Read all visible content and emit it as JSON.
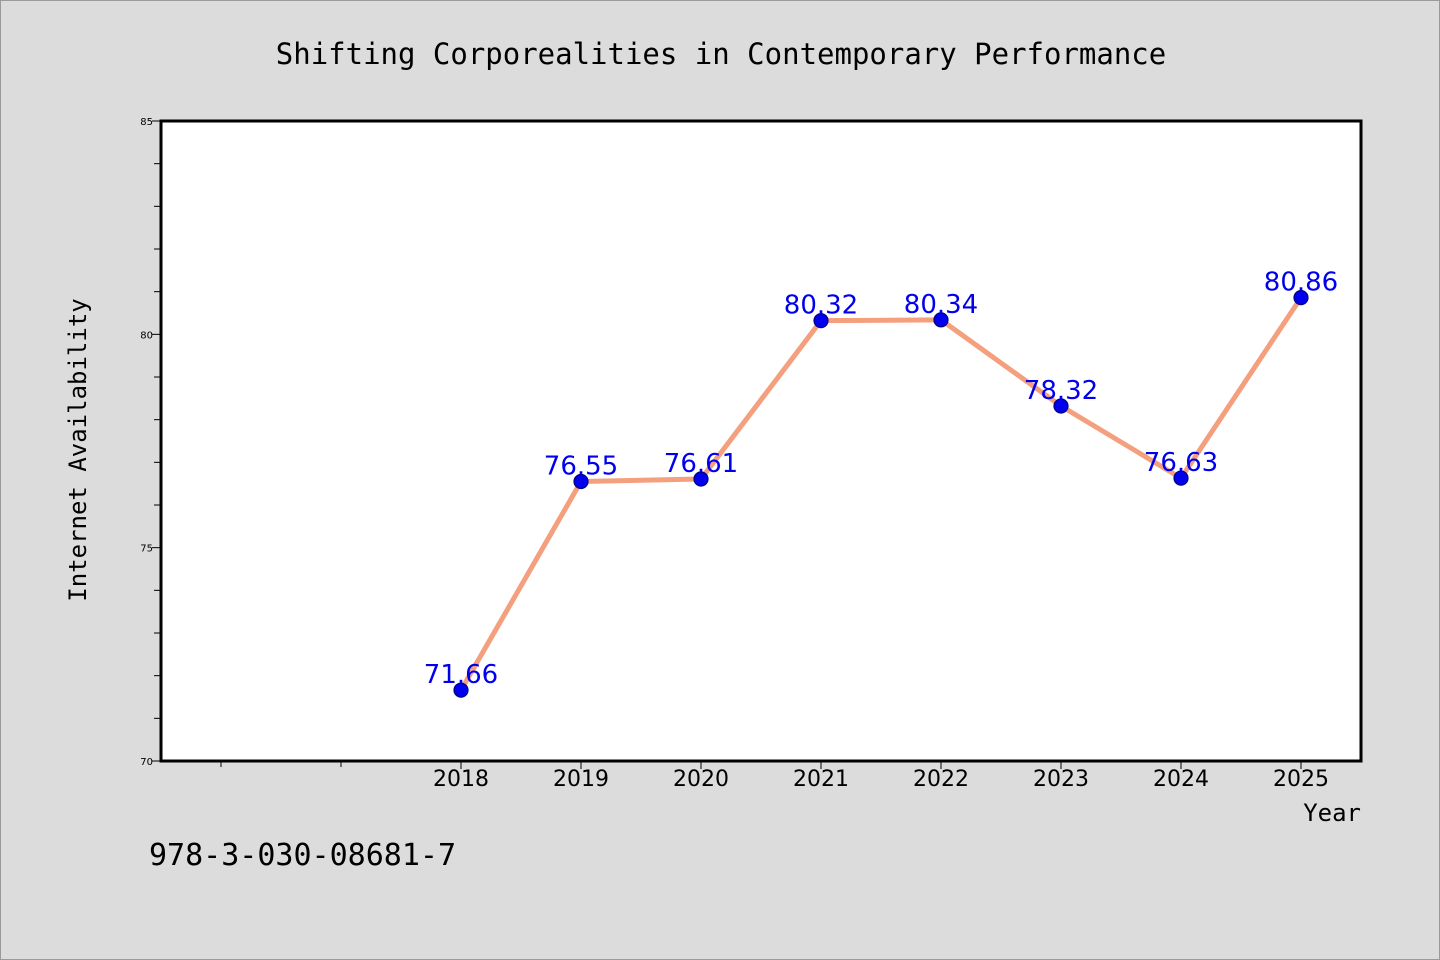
{
  "chart_data": {
    "type": "line",
    "title": "Shifting Corporealities in Contemporary Performance",
    "xlabel": "Year",
    "ylabel": "Internet Availability",
    "x": [
      2018,
      2019,
      2020,
      2021,
      2022,
      2023,
      2024,
      2025
    ],
    "x_tick_labels": [
      "2018",
      "2019",
      "2020",
      "2021",
      "2022",
      "2023",
      "2024",
      "2025"
    ],
    "xlim": [
      2015.5,
      2025.5
    ],
    "series": [
      {
        "values": [
          71.66,
          76.55,
          76.61,
          80.32,
          80.34,
          78.32,
          76.63,
          80.86
        ],
        "data_labels": [
          "71.66",
          "76.55",
          "76.61",
          "80.32",
          "80.34",
          "78.32",
          "76.63",
          "80.86"
        ]
      }
    ],
    "ylim": [
      70,
      85
    ],
    "y_major_ticks": [
      70,
      75,
      80,
      85
    ],
    "y_tick_labels": [
      "70",
      "75",
      "80",
      "85"
    ],
    "y_minor_step": 1,
    "grid": false,
    "colors": {
      "line": "#f4a07e",
      "marker": "#0000ee",
      "marker_edge": "#000080",
      "data_label": "#0000ee",
      "plot_background": "#ffffff",
      "figure_background": "#dcdcdc",
      "axes_frame": "#000000"
    }
  },
  "footnote": "978-3-030-08681-7"
}
